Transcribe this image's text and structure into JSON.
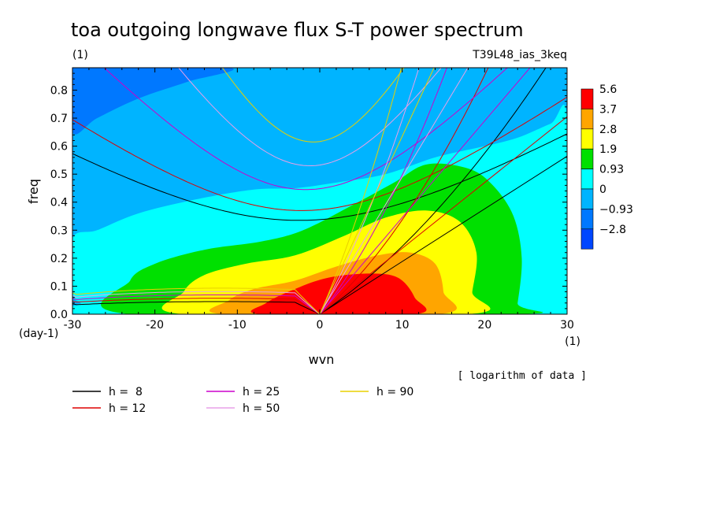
{
  "chart_data": {
    "type": "heatmap",
    "title": "toa outgoing longwave flux S-T power spectrum",
    "subtitle": "(1)",
    "run_label": "T39L48_ias_3keq",
    "xlabel": "wvn",
    "ylabel": "freq",
    "x_unit": "(1)",
    "y_unit": "(day-1)",
    "xlim": [
      -30,
      30
    ],
    "ylim": [
      0,
      0.88
    ],
    "x_ticks": [
      "-30",
      "-20",
      "-10",
      "0",
      "10",
      "20",
      "30"
    ],
    "y_ticks": [
      "0.0",
      "0.1",
      "0.2",
      "0.3",
      "0.4",
      "0.5",
      "0.6",
      "0.7",
      "0.8"
    ],
    "note": "[ logarithm of data ]",
    "colorbar": {
      "levels": [
        "5.6",
        "3.7",
        "2.8",
        "1.9",
        "0.93",
        "0",
        "−0.93",
        "−2.8"
      ],
      "colors": [
        "#ff0000",
        "#ffa500",
        "#ffff00",
        "#00e000",
        "#00ffff",
        "#00b4ff",
        "#0078ff",
        "#0046ff"
      ]
    },
    "contour_regions": [
      {
        "level": "0 to 0.93",
        "color": "#00ffff",
        "outline": [
          [
            -30,
            0.08
          ],
          [
            -30,
            0.27
          ],
          [
            -27,
            0.3
          ],
          [
            -22,
            0.36
          ],
          [
            -15,
            0.41
          ],
          [
            -8,
            0.445
          ],
          [
            -3,
            0.45
          ],
          [
            2,
            0.47
          ],
          [
            8,
            0.5
          ],
          [
            14,
            0.56
          ],
          [
            20,
            0.6
          ],
          [
            24,
            0.63
          ],
          [
            28,
            0.68
          ],
          [
            30,
            0.7
          ],
          [
            30,
            0
          ],
          [
            -27,
            0
          ],
          [
            -29,
            0.04
          ]
        ]
      },
      {
        "level": "0.93 to 1.9",
        "color": "#00e000",
        "outline": [
          [
            -23,
            0
          ],
          [
            -23,
            0.12
          ],
          [
            -20,
            0.18
          ],
          [
            -14,
            0.23
          ],
          [
            -7,
            0.26
          ],
          [
            -2,
            0.3
          ],
          [
            4,
            0.39
          ],
          [
            9,
            0.47
          ],
          [
            13,
            0.535
          ],
          [
            18,
            0.52
          ],
          [
            21,
            0.46
          ],
          [
            23.5,
            0.35
          ],
          [
            24.5,
            0.2
          ],
          [
            24,
            0.04
          ],
          [
            23.5,
            0
          ]
        ]
      },
      {
        "level": "1.9 to 2.8",
        "color": "#ffff00",
        "outline": [
          [
            -16.5,
            0
          ],
          [
            -16.5,
            0.08
          ],
          [
            -14,
            0.14
          ],
          [
            -9,
            0.18
          ],
          [
            -3,
            0.21
          ],
          [
            3,
            0.28
          ],
          [
            8,
            0.345
          ],
          [
            13,
            0.37
          ],
          [
            17,
            0.33
          ],
          [
            19,
            0.22
          ],
          [
            18.5,
            0.08
          ],
          [
            18,
            0
          ]
        ]
      },
      {
        "level": "2.8 to 3.7",
        "color": "#ffa500",
        "outline": [
          [
            -11.5,
            0
          ],
          [
            -11,
            0.05
          ],
          [
            -8,
            0.09
          ],
          [
            -3,
            0.12
          ],
          [
            2,
            0.17
          ],
          [
            7,
            0.21
          ],
          [
            11,
            0.22
          ],
          [
            14,
            0.18
          ],
          [
            15,
            0.08
          ],
          [
            14.5,
            0
          ]
        ]
      },
      {
        "level": "3.7 to 5.6",
        "color": "#ff0000",
        "outline": [
          [
            -7,
            0
          ],
          [
            -6.5,
            0.04
          ],
          [
            -3,
            0.09
          ],
          [
            1,
            0.13
          ],
          [
            6,
            0.145
          ],
          [
            9.5,
            0.13
          ],
          [
            11.5,
            0.06
          ],
          [
            11.5,
            0
          ]
        ]
      },
      {
        "level": "-0.93 to -2.8",
        "color": "#0078ff",
        "outline": [
          [
            -30,
            0.65
          ],
          [
            -30,
            0.88
          ],
          [
            -11,
            0.88
          ],
          [
            -16,
            0.83
          ],
          [
            -22,
            0.77
          ],
          [
            -27,
            0.7
          ]
        ]
      }
    ],
    "dispersion_curves": [
      {
        "name": "h =  8",
        "color": "#000000",
        "min_freq": 0.335,
        "min_wvn": -2.5,
        "kelvin_slope": 0.0188
      },
      {
        "name": "h = 12",
        "color": "#dd0000",
        "min_freq": 0.37,
        "min_wvn": -2.2,
        "kelvin_slope": 0.0235
      },
      {
        "name": "h = 25",
        "color": "#cc00cc",
        "min_freq": 0.445,
        "min_wvn": -1.7,
        "kelvin_slope": 0.0345
      },
      {
        "name": "h = 50",
        "color": "#e8a0e8",
        "min_freq": 0.53,
        "min_wvn": -1.2,
        "kelvin_slope": 0.049
      },
      {
        "name": "h = 90",
        "color": "#e8d000",
        "min_freq": 0.615,
        "min_wvn": -0.8,
        "kelvin_slope": 0.0635
      }
    ]
  }
}
